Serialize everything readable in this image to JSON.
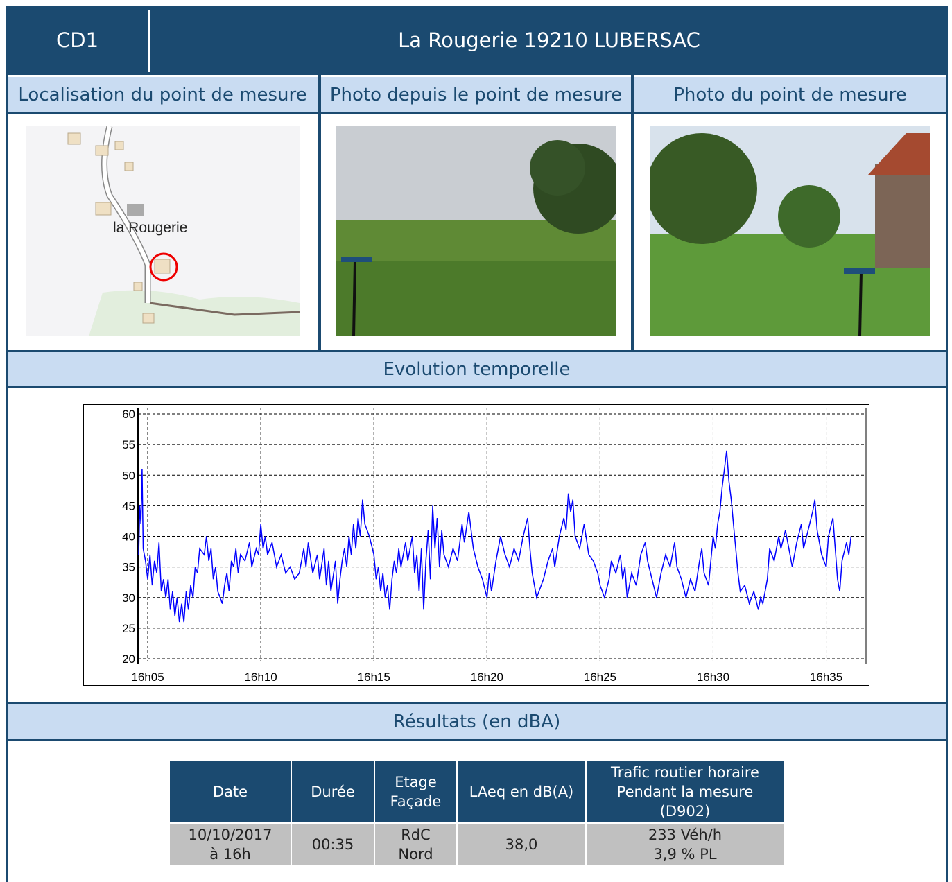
{
  "header": {
    "code": "CD1",
    "title": "La Rougerie 19210 LUBERSAC"
  },
  "panels": [
    {
      "title": "Localisation du point de mesure",
      "map_label": "la Rougerie"
    },
    {
      "title": "Photo depuis le point de mesure"
    },
    {
      "title": "Photo du point de mesure"
    }
  ],
  "chart_section": "Evolution temporelle",
  "chart_data": {
    "type": "line",
    "color": "#0000ff",
    "grid": true,
    "xlim": [
      4.57,
      36.7
    ],
    "ylim": [
      20,
      60
    ],
    "yticks": [
      20,
      25,
      30,
      35,
      40,
      45,
      50,
      55,
      60
    ],
    "xticks": [
      {
        "value": 5,
        "label": "16h05"
      },
      {
        "value": 10,
        "label": "16h10"
      },
      {
        "value": 15,
        "label": "16h15"
      },
      {
        "value": 20,
        "label": "16h20"
      },
      {
        "value": 25,
        "label": "16h25"
      },
      {
        "value": 30,
        "label": "16h30"
      },
      {
        "value": 35,
        "label": "16h35"
      }
    ],
    "x": [
      4.6,
      4.65,
      4.7,
      4.75,
      4.8,
      4.9,
      5.0,
      5.1,
      5.2,
      5.3,
      5.4,
      5.5,
      5.6,
      5.7,
      5.8,
      5.9,
      6.0,
      6.1,
      6.2,
      6.3,
      6.4,
      6.5,
      6.6,
      6.7,
      6.8,
      6.9,
      7.0,
      7.1,
      7.2,
      7.3,
      7.5,
      7.6,
      7.7,
      7.8,
      7.9,
      8.0,
      8.1,
      8.2,
      8.3,
      8.4,
      8.5,
      8.6,
      8.7,
      8.8,
      8.9,
      9.0,
      9.1,
      9.3,
      9.5,
      9.6,
      9.8,
      9.9,
      10.0,
      10.1,
      10.2,
      10.3,
      10.5,
      10.7,
      10.9,
      11.1,
      11.3,
      11.5,
      11.7,
      11.9,
      12.0,
      12.1,
      12.3,
      12.5,
      12.6,
      12.8,
      12.9,
      13.0,
      13.1,
      13.3,
      13.4,
      13.5,
      13.6,
      13.7,
      13.8,
      13.9,
      14.0,
      14.1,
      14.2,
      14.3,
      14.4,
      14.5,
      14.6,
      14.8,
      15.0,
      15.1,
      15.2,
      15.3,
      15.4,
      15.5,
      15.6,
      15.7,
      15.8,
      15.9,
      16.0,
      16.1,
      16.2,
      16.4,
      16.5,
      16.7,
      16.8,
      16.9,
      17.0,
      17.1,
      17.2,
      17.3,
      17.4,
      17.5,
      17.6,
      17.7,
      17.8,
      17.9,
      18.0,
      18.1,
      18.3,
      18.5,
      18.7,
      18.9,
      19.0,
      19.2,
      19.4,
      19.6,
      19.8,
      20.0,
      20.1,
      20.2,
      20.4,
      20.6,
      20.8,
      21.0,
      21.2,
      21.4,
      21.6,
      21.8,
      21.9,
      22.0,
      22.2,
      22.3,
      22.5,
      22.7,
      22.9,
      23.0,
      23.2,
      23.4,
      23.5,
      23.6,
      23.7,
      23.8,
      23.9,
      24.1,
      24.3,
      24.5,
      24.7,
      24.9,
      25.0,
      25.2,
      25.4,
      25.5,
      25.7,
      25.9,
      26.0,
      26.1,
      26.2,
      26.4,
      26.6,
      26.8,
      27.0,
      27.1,
      27.3,
      27.5,
      27.7,
      27.9,
      28.1,
      28.3,
      28.4,
      28.6,
      28.8,
      29.0,
      29.2,
      29.4,
      29.5,
      29.6,
      29.8,
      30.0,
      30.1,
      30.2,
      30.3,
      30.4,
      30.5,
      30.6,
      30.7,
      30.8,
      30.9,
      31.0,
      31.1,
      31.2,
      31.4,
      31.6,
      31.8,
      32.0,
      32.1,
      32.2,
      32.4,
      32.5,
      32.7,
      32.9,
      33.0,
      33.2,
      33.4,
      33.5,
      33.7,
      33.9,
      34.0,
      34.2,
      34.4,
      34.5,
      34.6,
      34.8,
      35.0,
      35.1,
      35.3,
      35.4,
      35.5,
      35.6,
      35.7,
      35.9,
      36.0,
      36.1
    ],
    "values": [
      37,
      45,
      42,
      51,
      38,
      36,
      33,
      37,
      32,
      36,
      34,
      39,
      31,
      33,
      30,
      33,
      28,
      31,
      27,
      30,
      26,
      29,
      26,
      31,
      28,
      32,
      30,
      35,
      34,
      38,
      37,
      40,
      36,
      38,
      33,
      35,
      31,
      30,
      29,
      32,
      34,
      31,
      36,
      35,
      38,
      34,
      37,
      36,
      39,
      35,
      38,
      37,
      42,
      38,
      40,
      37,
      39,
      35,
      37,
      34,
      35,
      33,
      34,
      38,
      35,
      39,
      34,
      37,
      33,
      38,
      32,
      36,
      31,
      36,
      29,
      33,
      36,
      38,
      35,
      40,
      37,
      42,
      38,
      43,
      40,
      46,
      42,
      40,
      37,
      33,
      35,
      31,
      34,
      30,
      32,
      28,
      33,
      36,
      34,
      38,
      35,
      39,
      36,
      40,
      34,
      37,
      31,
      38,
      28,
      36,
      41,
      33,
      45,
      38,
      43,
      35,
      41,
      37,
      35,
      38,
      36,
      42,
      39,
      44,
      38,
      35,
      33,
      30,
      34,
      31,
      36,
      40,
      37,
      35,
      38,
      36,
      40,
      43,
      38,
      34,
      30,
      31,
      33,
      36,
      38,
      35,
      40,
      43,
      41,
      47,
      44,
      46,
      40,
      38,
      42,
      37,
      36,
      34,
      32,
      30,
      33,
      36,
      34,
      37,
      33,
      35,
      30,
      34,
      32,
      37,
      39,
      36,
      33,
      30,
      34,
      37,
      35,
      39,
      35,
      33,
      30,
      33,
      31,
      36,
      38,
      34,
      32,
      40,
      38,
      42,
      44,
      48,
      51,
      54,
      49,
      46,
      42,
      38,
      34,
      31,
      32,
      29,
      31,
      28,
      30,
      29,
      33,
      38,
      36,
      40,
      38,
      41,
      37,
      35,
      39,
      42,
      38,
      41,
      44,
      46,
      41,
      37,
      35,
      40,
      43,
      38,
      33,
      31,
      36,
      39,
      37,
      40
    ]
  },
  "results_section": "Résultats (en dBA)",
  "table": {
    "headers": [
      "Date",
      "Durée",
      "Etage\nFaçade",
      "LAeq en dB(A)",
      "Trafic routier horaire\nPendant la mesure\n(D902)"
    ],
    "rows": [
      [
        "10/10/2017\nà 16h",
        "00:35",
        "RdC\nNord",
        "38,0",
        "233 Véh/h\n3,9 % PL"
      ]
    ]
  }
}
